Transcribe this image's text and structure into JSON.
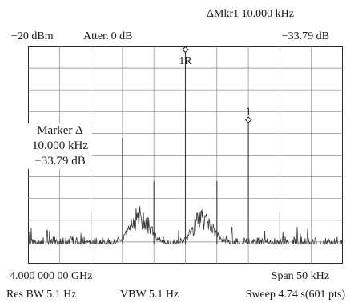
{
  "header": {
    "marker_readout": "ΔMkr1  10.000 kHz",
    "ref_level": "−20 dBm",
    "attenuation": "Atten 0 dB",
    "marker_value": "−33.79 dB"
  },
  "footer": {
    "center_freq": "4.000 000 00 GHz",
    "span": "Span 50 kHz",
    "rbw": "Res BW 5.1 Hz",
    "vbw": "VBW 5.1 Hz",
    "sweep": "Sweep 4.74 s(601 pts)"
  },
  "marker_box": {
    "line1": "Marker Δ",
    "line2": "10.000 kHz",
    "line3": "−33.79 dB"
  },
  "markers": [
    {
      "label": "1R",
      "freq_offset_khz": 0,
      "level_db": 0
    },
    {
      "label": "1",
      "freq_offset_khz": 10,
      "level_db": -33.79
    }
  ],
  "chart_data": {
    "type": "line",
    "xlim_khz": [
      -25,
      25
    ],
    "ylim_db": [
      -100,
      0
    ],
    "grid": true,
    "grid_divisions": {
      "x": 10,
      "y": 10
    },
    "trace_color": "#3a3a3a",
    "peaks": [
      {
        "offset_khz": -15,
        "level_db": -76
      },
      {
        "offset_khz": -10,
        "level_db": -42
      },
      {
        "offset_khz": -5,
        "level_db": -62
      },
      {
        "offset_khz": 0,
        "level_db": 0
      },
      {
        "offset_khz": 5,
        "level_db": -62
      },
      {
        "offset_khz": 10,
        "level_db": -34
      },
      {
        "offset_khz": 15,
        "level_db": -76
      }
    ],
    "noise_floor_db": -91,
    "skirts": [
      {
        "center_khz": -7.2,
        "peak_db": -73,
        "width_khz": 2.2
      },
      {
        "center_khz": 2.8,
        "peak_db": -73,
        "width_khz": 2.2
      }
    ]
  }
}
